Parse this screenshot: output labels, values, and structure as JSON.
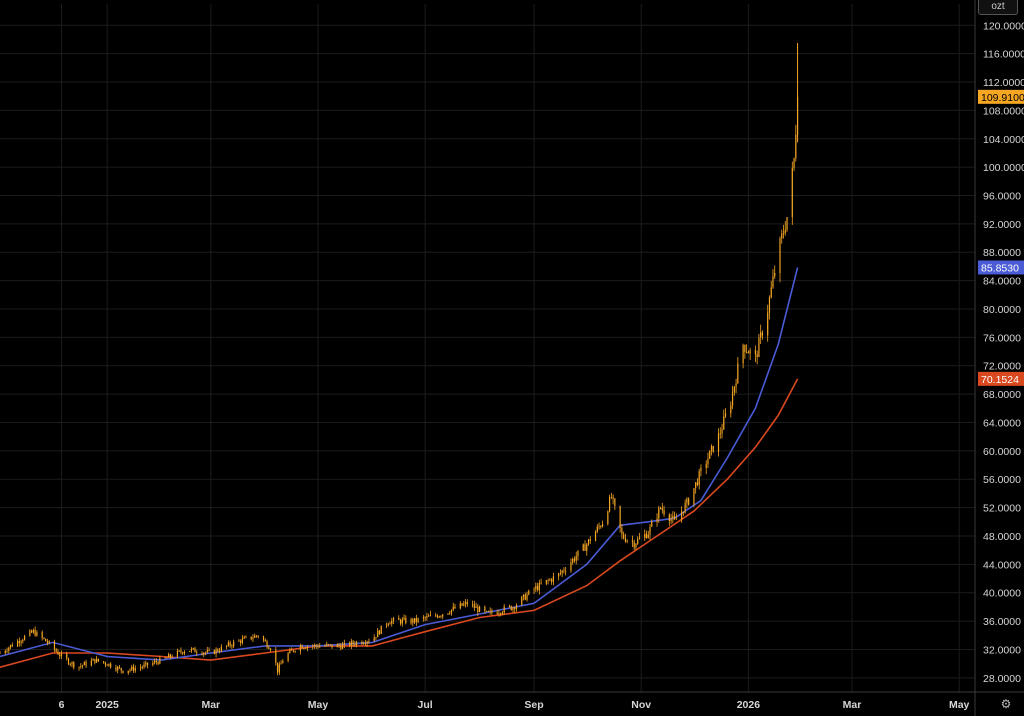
{
  "controls": {
    "corner_label": "ozt",
    "settings_icon": "gear-icon"
  },
  "chart_data": {
    "type": "candlestick",
    "price_axis": {
      "ylim": [
        26.0,
        123.0
      ],
      "ticks": [
        "120.0000",
        "116.0000",
        "112.0000",
        "108.0000",
        "104.0000",
        "100.0000",
        "96.0000",
        "92.0000",
        "88.0000",
        "84.0000",
        "80.0000",
        "76.0000",
        "72.0000",
        "68.0000",
        "64.0000",
        "60.0000",
        "56.0000",
        "52.0000",
        "48.0000",
        "44.0000",
        "40.0000",
        "36.0000",
        "32.0000",
        "28.0000"
      ]
    },
    "time_axis": {
      "start": "2024-11-01",
      "end": "2026-05-10",
      "labels": [
        {
          "text": "6",
          "date": "2024-12-06"
        },
        {
          "text": "2025",
          "date": "2025-01-01"
        },
        {
          "text": "Mar",
          "date": "2025-03-01"
        },
        {
          "text": "May",
          "date": "2025-05-01"
        },
        {
          "text": "Jul",
          "date": "2025-07-01"
        },
        {
          "text": "Sep",
          "date": "2025-09-01"
        },
        {
          "text": "Nov",
          "date": "2025-11-01"
        },
        {
          "text": "2026",
          "date": "2026-01-01"
        },
        {
          "text": "Mar",
          "date": "2026-03-01"
        },
        {
          "text": "May",
          "date": "2026-05-01"
        }
      ]
    },
    "price_series": {
      "name": "",
      "color": "#f5a623",
      "last": "109.9100",
      "points": [
        [
          "2024-11-01",
          31.5
        ],
        [
          "2024-11-10",
          33.0
        ],
        [
          "2024-11-20",
          34.5
        ],
        [
          "2024-11-28",
          33.0
        ],
        [
          "2024-12-06",
          31.0
        ],
        [
          "2024-12-15",
          29.5
        ],
        [
          "2024-12-25",
          30.5
        ],
        [
          "2025-01-01",
          30.0
        ],
        [
          "2025-01-10",
          29.0
        ],
        [
          "2025-01-20",
          29.5
        ],
        [
          "2025-02-01",
          30.5
        ],
        [
          "2025-02-15",
          32.0
        ],
        [
          "2025-03-01",
          31.5
        ],
        [
          "2025-03-15",
          33.0
        ],
        [
          "2025-03-28",
          34.0
        ],
        [
          "2025-04-05",
          32.0
        ],
        [
          "2025-04-08",
          29.0
        ],
        [
          "2025-04-12",
          31.0
        ],
        [
          "2025-04-20",
          32.5
        ],
        [
          "2025-05-01",
          32.5
        ],
        [
          "2025-05-15",
          32.5
        ],
        [
          "2025-06-01",
          33.5
        ],
        [
          "2025-06-10",
          36.0
        ],
        [
          "2025-06-25",
          36.0
        ],
        [
          "2025-07-10",
          37.0
        ],
        [
          "2025-07-25",
          38.5
        ],
        [
          "2025-08-05",
          37.0
        ],
        [
          "2025-08-20",
          38.0
        ],
        [
          "2025-09-01",
          40.5
        ],
        [
          "2025-09-15",
          42.5
        ],
        [
          "2025-09-30",
          46.5
        ],
        [
          "2025-10-10",
          50.0
        ],
        [
          "2025-10-15",
          53.5
        ],
        [
          "2025-10-21",
          48.0
        ],
        [
          "2025-10-28",
          47.0
        ],
        [
          "2025-11-05",
          48.5
        ],
        [
          "2025-11-12",
          52.0
        ],
        [
          "2025-11-20",
          50.0
        ],
        [
          "2025-11-28",
          53.0
        ],
        [
          "2025-12-05",
          57.0
        ],
        [
          "2025-12-15",
          62.0
        ],
        [
          "2025-12-22",
          67.0
        ],
        [
          "2025-12-29",
          75.0
        ],
        [
          "2026-01-05",
          73.0
        ],
        [
          "2026-01-12",
          80.0
        ],
        [
          "2026-01-18",
          88.0
        ],
        [
          "2026-01-23",
          93.0
        ],
        [
          "2026-01-27",
          101.0
        ],
        [
          "2026-01-29",
          109.91
        ]
      ]
    },
    "ma_fast": {
      "name": "",
      "color": "#4a5bd6",
      "last": "85.8530",
      "points": [
        [
          "2024-11-01",
          31.0
        ],
        [
          "2024-12-01",
          33.0
        ],
        [
          "2025-01-01",
          31.0
        ],
        [
          "2025-02-01",
          30.5
        ],
        [
          "2025-03-01",
          31.5
        ],
        [
          "2025-04-01",
          32.5
        ],
        [
          "2025-05-01",
          32.5
        ],
        [
          "2025-06-01",
          33.0
        ],
        [
          "2025-07-01",
          35.5
        ],
        [
          "2025-08-01",
          37.0
        ],
        [
          "2025-09-01",
          38.5
        ],
        [
          "2025-10-01",
          44.0
        ],
        [
          "2025-10-20",
          49.5
        ],
        [
          "2025-11-05",
          50.0
        ],
        [
          "2025-11-20",
          50.5
        ],
        [
          "2025-12-05",
          53.0
        ],
        [
          "2025-12-20",
          59.0
        ],
        [
          "2026-01-05",
          66.0
        ],
        [
          "2026-01-18",
          75.0
        ],
        [
          "2026-01-29",
          85.85
        ]
      ]
    },
    "ma_slow": {
      "name": "",
      "color": "#d9481f",
      "last": "70.1524",
      "points": [
        [
          "2024-11-01",
          29.5
        ],
        [
          "2024-12-01",
          31.5
        ],
        [
          "2025-01-01",
          31.5
        ],
        [
          "2025-02-01",
          31.0
        ],
        [
          "2025-03-01",
          30.5
        ],
        [
          "2025-04-01",
          31.5
        ],
        [
          "2025-05-01",
          32.5
        ],
        [
          "2025-06-01",
          32.5
        ],
        [
          "2025-07-01",
          34.5
        ],
        [
          "2025-08-01",
          36.5
        ],
        [
          "2025-09-01",
          37.5
        ],
        [
          "2025-10-01",
          41.0
        ],
        [
          "2025-10-20",
          44.5
        ],
        [
          "2025-11-10",
          48.0
        ],
        [
          "2025-12-01",
          51.5
        ],
        [
          "2025-12-20",
          56.0
        ],
        [
          "2026-01-05",
          60.5
        ],
        [
          "2026-01-18",
          65.0
        ],
        [
          "2026-01-29",
          70.15
        ]
      ]
    }
  }
}
